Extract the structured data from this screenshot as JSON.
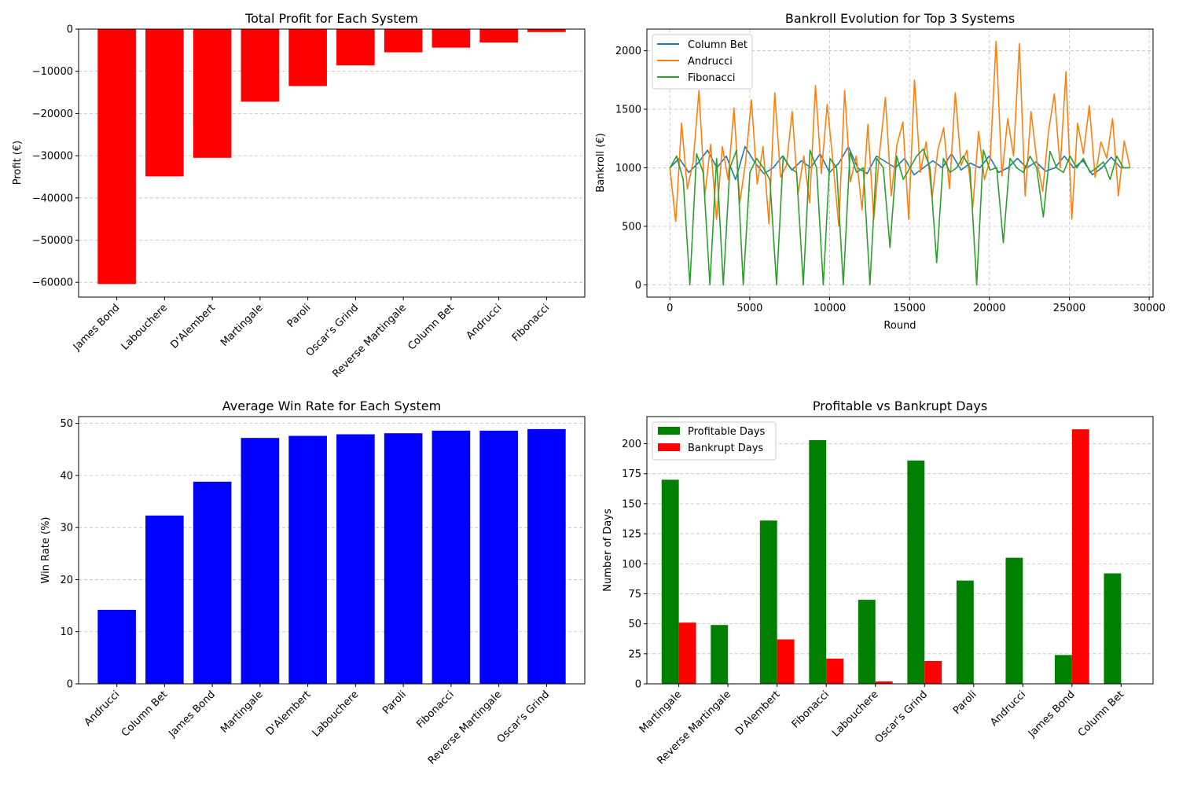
{
  "chart_data": [
    {
      "id": "profit",
      "type": "bar",
      "title": "Total Profit for Each System",
      "xlabel": "",
      "ylabel": "Profit (€)",
      "categories": [
        "James Bond",
        "Labouchere",
        "D'Alembert",
        "Martingale",
        "Paroli",
        "Oscar's Grind",
        "Reverse Martingale",
        "Column Bet",
        "Andrucci",
        "Fibonacci"
      ],
      "values": [
        -60400,
        -34900,
        -30500,
        -17200,
        -13500,
        -8600,
        -5500,
        -4400,
        -3200,
        -700
      ],
      "ylim": [
        -63500,
        0
      ],
      "yticks": [
        0,
        -10000,
        -20000,
        -30000,
        -40000,
        -50000,
        -60000
      ],
      "ytick_labels": [
        "0",
        "−10000",
        "−20000",
        "−30000",
        "−40000",
        "−50000",
        "−60000"
      ],
      "color": "#ff0000",
      "grid": "y-dashed"
    },
    {
      "id": "bankroll",
      "type": "line",
      "title": "Bankroll Evolution for Top 3 Systems",
      "xlabel": "Round",
      "ylabel": "Bankroll (€)",
      "xlim": [
        -1440,
        30240
      ],
      "ylim": [
        -104,
        2184
      ],
      "xticks": [
        0,
        5000,
        10000,
        15000,
        20000,
        25000,
        30000
      ],
      "yticks": [
        0,
        500,
        1000,
        1500,
        2000
      ],
      "legend_position": "upper left",
      "grid": "both-dashed",
      "rounds": 28800,
      "series": [
        {
          "name": "Column Bet",
          "color": "#1f77b4",
          "values": [
            1000,
            1080,
            960,
            1040,
            1150,
            1000,
            1100,
            900,
            1180,
            1050,
            950,
            1000,
            1100,
            980,
            1060,
            1000,
            1120,
            960,
            1040,
            1180,
            1000,
            950,
            1100,
            1050,
            1000,
            1080,
            940,
            1000,
            1060,
            1000,
            1120,
            980,
            1040,
            1000,
            1100,
            960,
            1000,
            1080,
            1000,
            1050,
            970,
            1000,
            1100,
            1000,
            1060,
            940,
            1000,
            1090,
            1000,
            1000
          ]
        },
        {
          "name": "Andrucci",
          "color": "#ff7f0e",
          "values": [
            1000,
            540,
            1380,
            820,
            1050,
            1660,
            760,
            1200,
            560,
            1180,
            900,
            1510,
            700,
            1050,
            1580,
            860,
            1180,
            520,
            1640,
            920,
            1020,
            1480,
            780,
            1100,
            700,
            1700,
            950,
            1540,
            1050,
            500,
            1660,
            880,
            1100,
            640,
            1370,
            560,
            1130,
            1600,
            760,
            1200,
            1390,
            560,
            1750,
            960,
            1220,
            740,
            1150,
            1340,
            820,
            1640,
            1020,
            1150,
            660,
            1310,
            900,
            1080,
            2080,
            930,
            1420,
            1100,
            2060,
            760,
            1480,
            1060,
            800,
            1310,
            1630,
            1000,
            1820,
            560,
            1380,
            1120,
            1530,
            920,
            1220,
            1080,
            1420,
            760,
            1230,
            1000
          ]
        },
        {
          "name": "Fibonacci",
          "color": "#2ca02c",
          "values": [
            1000,
            1100,
            900,
            0,
            1120,
            960,
            0,
            1080,
            0,
            1000,
            1150,
            0,
            960,
            1080,
            1000,
            900,
            0,
            1100,
            1000,
            960,
            0,
            1150,
            1000,
            0,
            1080,
            1000,
            0,
            1130,
            960,
            1000,
            0,
            1080,
            1000,
            320,
            1100,
            900,
            1000,
            1100,
            1160,
            1000,
            190,
            1080,
            960,
            1000,
            1100,
            1000,
            0,
            1150,
            980,
            1000,
            360,
            1080,
            1000,
            960,
            1100,
            1000,
            580,
            1140,
            1000,
            960,
            1100,
            1000,
            1080,
            960,
            1000,
            1050,
            900,
            1100,
            1000,
            1000
          ]
        }
      ]
    },
    {
      "id": "winrate",
      "type": "bar",
      "title": "Average Win Rate for Each System",
      "xlabel": "",
      "ylabel": "Win Rate (%)",
      "categories": [
        "Andrucci",
        "Column Bet",
        "James Bond",
        "Martingale",
        "D'Alembert",
        "Labouchere",
        "Paroli",
        "Fibonacci",
        "Reverse Martingale",
        "Oscar's Grind"
      ],
      "values": [
        14.2,
        32.3,
        38.8,
        47.2,
        47.6,
        47.9,
        48.1,
        48.6,
        48.6,
        48.9
      ],
      "ylim": [
        0,
        51.3
      ],
      "yticks": [
        0,
        10,
        20,
        30,
        40,
        50
      ],
      "color": "#0000ff",
      "grid": "y-dashed"
    },
    {
      "id": "days",
      "type": "bar",
      "title": "Profitable vs Bankrupt Days",
      "xlabel": "",
      "ylabel": "Number of Days",
      "categories": [
        "Martingale",
        "Reverse Martingale",
        "D'Alembert",
        "Fibonacci",
        "Labouchere",
        "Oscar's Grind",
        "Paroli",
        "Andrucci",
        "James Bond",
        "Column Bet"
      ],
      "series": [
        {
          "name": "Profitable Days",
          "color": "#008000",
          "values": [
            170,
            49,
            136,
            203,
            70,
            186,
            86,
            105,
            24,
            92
          ]
        },
        {
          "name": "Bankrupt Days",
          "color": "#ff0000",
          "values": [
            51,
            0,
            37,
            21,
            2,
            19,
            0,
            0,
            212,
            0
          ]
        }
      ],
      "ylim": [
        0,
        222.6
      ],
      "yticks": [
        0,
        25,
        50,
        75,
        100,
        125,
        150,
        175,
        200
      ],
      "legend_position": "upper left",
      "grid": "y-dashed"
    }
  ]
}
